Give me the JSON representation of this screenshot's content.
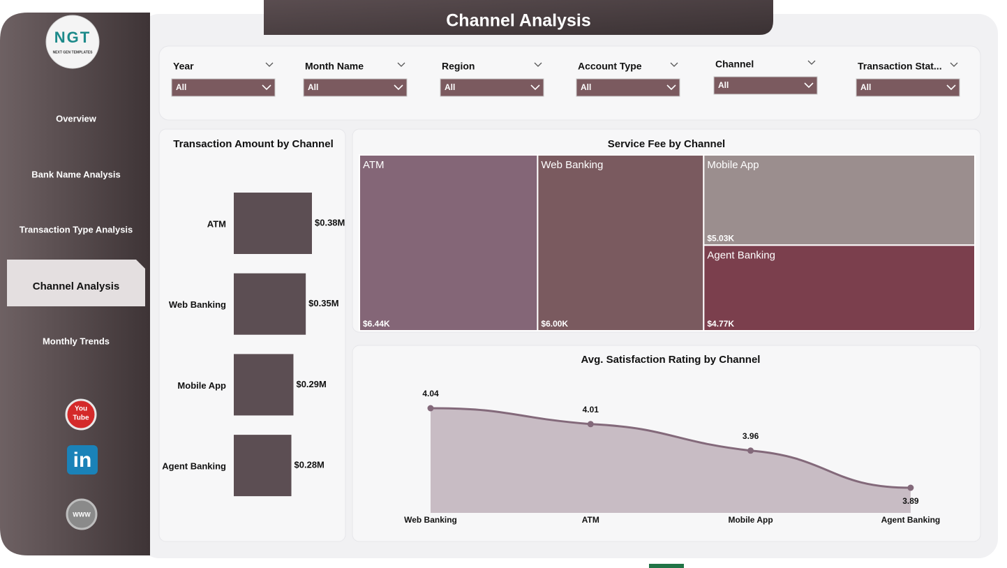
{
  "header": {
    "title": "Channel Analysis"
  },
  "logo": {
    "text": "NGT",
    "subtitle": "NEXT GEN TEMPLATES"
  },
  "nav": {
    "items": [
      "Overview",
      "Bank Name Analysis",
      "Transaction Type Analysis",
      "Channel Analysis",
      "Monthly Trends"
    ],
    "active": 3
  },
  "icons": {
    "youtube": [
      "You",
      "Tube"
    ],
    "linkedin": "in",
    "web": "WWW"
  },
  "filters": [
    {
      "label": "Year",
      "value": "All"
    },
    {
      "label": "Month Name",
      "value": "All"
    },
    {
      "label": "Region",
      "value": "All"
    },
    {
      "label": "Account Type",
      "value": "All"
    },
    {
      "label": "Channel",
      "value": "All"
    },
    {
      "label": "Transaction Stat...",
      "value": "All"
    }
  ],
  "chart_data": [
    {
      "type": "hbar",
      "title": "Transaction Amount by Channel",
      "categories": [
        "ATM",
        "Web Banking",
        "Mobile App",
        "Agent Banking"
      ],
      "values": [
        380000,
        350000,
        290000,
        280000
      ],
      "value_labels": [
        "$0.38M",
        "$0.35M",
        "$0.29M",
        "$0.28M"
      ],
      "color": "#5c4e53"
    },
    {
      "type": "treemap",
      "title": "Service Fee by Channel",
      "categories": [
        "ATM",
        "Web Banking",
        "Mobile App",
        "Agent Banking"
      ],
      "values": [
        6440,
        6000,
        5030,
        4770
      ],
      "value_labels": [
        "$6.44K",
        "$6.00K",
        "$5.03K",
        "$4.77K"
      ],
      "colors": [
        "#846677",
        "#7a5a5f",
        "#9b8e8e",
        "#7b3f4d"
      ]
    },
    {
      "type": "area",
      "title": "Avg. Satisfaction Rating by Channel",
      "categories": [
        "Web Banking",
        "ATM",
        "Mobile App",
        "Agent Banking"
      ],
      "values": [
        4.04,
        4.01,
        3.96,
        3.89
      ],
      "color": "#83697a",
      "fill": "#c8bcc4"
    }
  ]
}
